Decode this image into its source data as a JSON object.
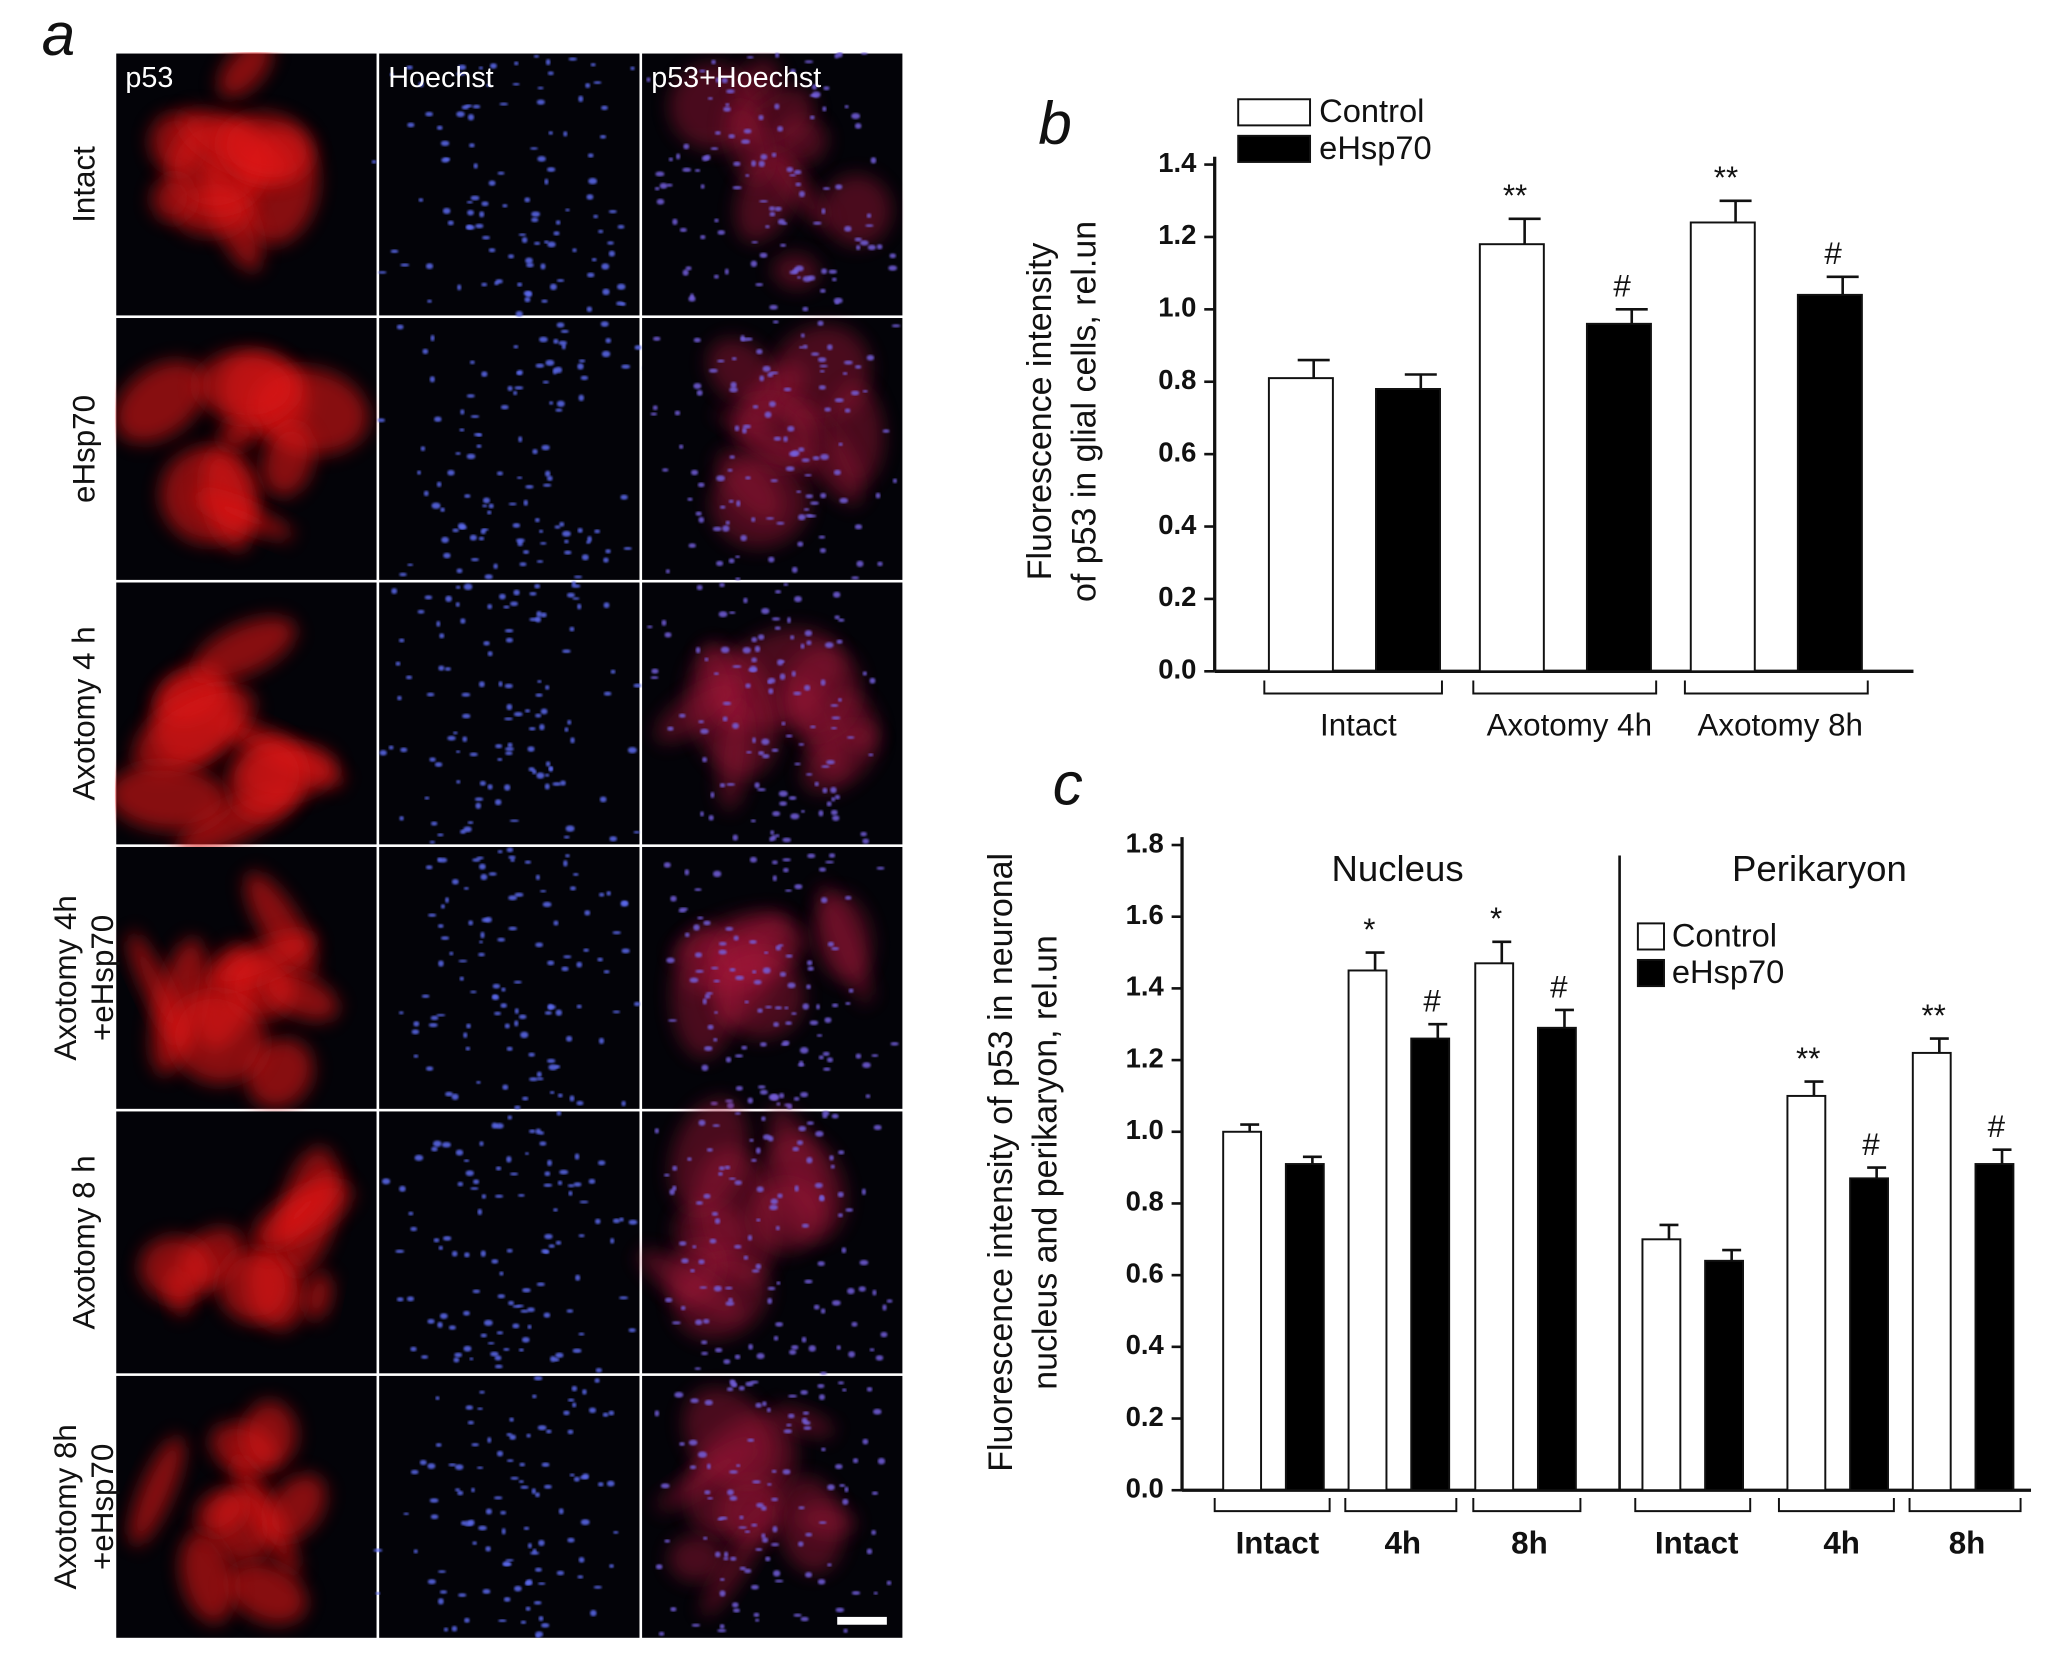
{
  "panel_a": {
    "label": "a",
    "columns": [
      "p53",
      "Hoechst",
      "p53+Hoechst"
    ],
    "rows": [
      [
        "Intact"
      ],
      [
        "eHsp70"
      ],
      [
        "Axotomy 4 h"
      ],
      [
        "Axotomy 4h",
        "+eHsp70"
      ],
      [
        "Axotomy 8 h"
      ],
      [
        "Axotomy 8h",
        "+eHsp70"
      ]
    ]
  },
  "chart_data": [
    {
      "type": "bar",
      "panel_label": "b",
      "ylabel": [
        "Fluorescence intensity",
        "of p53 in glial cells, rel.un"
      ],
      "categories": [
        "Intact",
        "Axotomy 4h",
        "Axotomy 8h"
      ],
      "series": [
        {
          "name": "Control",
          "color": "#ffffff",
          "values": [
            0.81,
            1.18,
            1.24
          ],
          "errors": [
            0.05,
            0.07,
            0.06
          ],
          "significance": [
            null,
            "**",
            "**"
          ]
        },
        {
          "name": "eHsp70",
          "color": "#000000",
          "values": [
            0.78,
            0.96,
            1.04
          ],
          "errors": [
            0.04,
            0.04,
            0.05
          ],
          "significance": [
            null,
            "#",
            "#"
          ]
        }
      ],
      "ylim": [
        0,
        1.4
      ],
      "yticks": [
        {
          "value": 0,
          "label": "0.0"
        },
        {
          "value": 0.2,
          "label": "0.2"
        },
        {
          "value": 0.4,
          "label": "0.4"
        },
        {
          "value": 0.6,
          "label": "0.6"
        },
        {
          "value": 0.8,
          "label": "0.8"
        },
        {
          "value": 1,
          "label": "1.0"
        },
        {
          "value": 1.2,
          "label": "1.2"
        },
        {
          "value": 1.4,
          "label": "1.4"
        }
      ],
      "grid": false,
      "legend": "upper left"
    },
    {
      "type": "bar",
      "panel_label": "c",
      "ylabel": [
        "Fluorescence intensity of p53 in neuronal",
        "nucleus and perikaryon, rel.un"
      ],
      "group_labels": [
        "Nucleus",
        "Perikaryon"
      ],
      "categories": [
        "Intact",
        "4h",
        "8h",
        "Intact",
        "4h",
        "8h"
      ],
      "series": [
        {
          "name": "Control",
          "color": "#ffffff",
          "values": [
            1.0,
            1.45,
            1.47,
            0.7,
            1.1,
            1.22
          ],
          "errors": [
            0.02,
            0.05,
            0.06,
            0.04,
            0.04,
            0.04
          ],
          "significance": [
            null,
            "*",
            "*",
            null,
            "**",
            "**"
          ]
        },
        {
          "name": "eHsp70",
          "color": "#000000",
          "values": [
            0.91,
            1.26,
            1.29,
            0.64,
            0.87,
            0.91
          ],
          "errors": [
            0.02,
            0.04,
            0.05,
            0.03,
            0.03,
            0.04
          ],
          "significance": [
            null,
            "#",
            "#",
            null,
            "#",
            "#"
          ]
        }
      ],
      "ylim": [
        0,
        1.8
      ],
      "yticks": [
        {
          "value": 0,
          "label": "0.0"
        },
        {
          "value": 0.2,
          "label": "0.2"
        },
        {
          "value": 0.4,
          "label": "0.4"
        },
        {
          "value": 0.6,
          "label": "0.6"
        },
        {
          "value": 0.8,
          "label": "0.8"
        },
        {
          "value": 1,
          "label": "1.0"
        },
        {
          "value": 1.2,
          "label": "1.2"
        },
        {
          "value": 1.4,
          "label": "1.4"
        },
        {
          "value": 1.6,
          "label": "1.6"
        },
        {
          "value": 1.8,
          "label": "1.8"
        }
      ],
      "grid": false,
      "legend": "upper right"
    }
  ]
}
